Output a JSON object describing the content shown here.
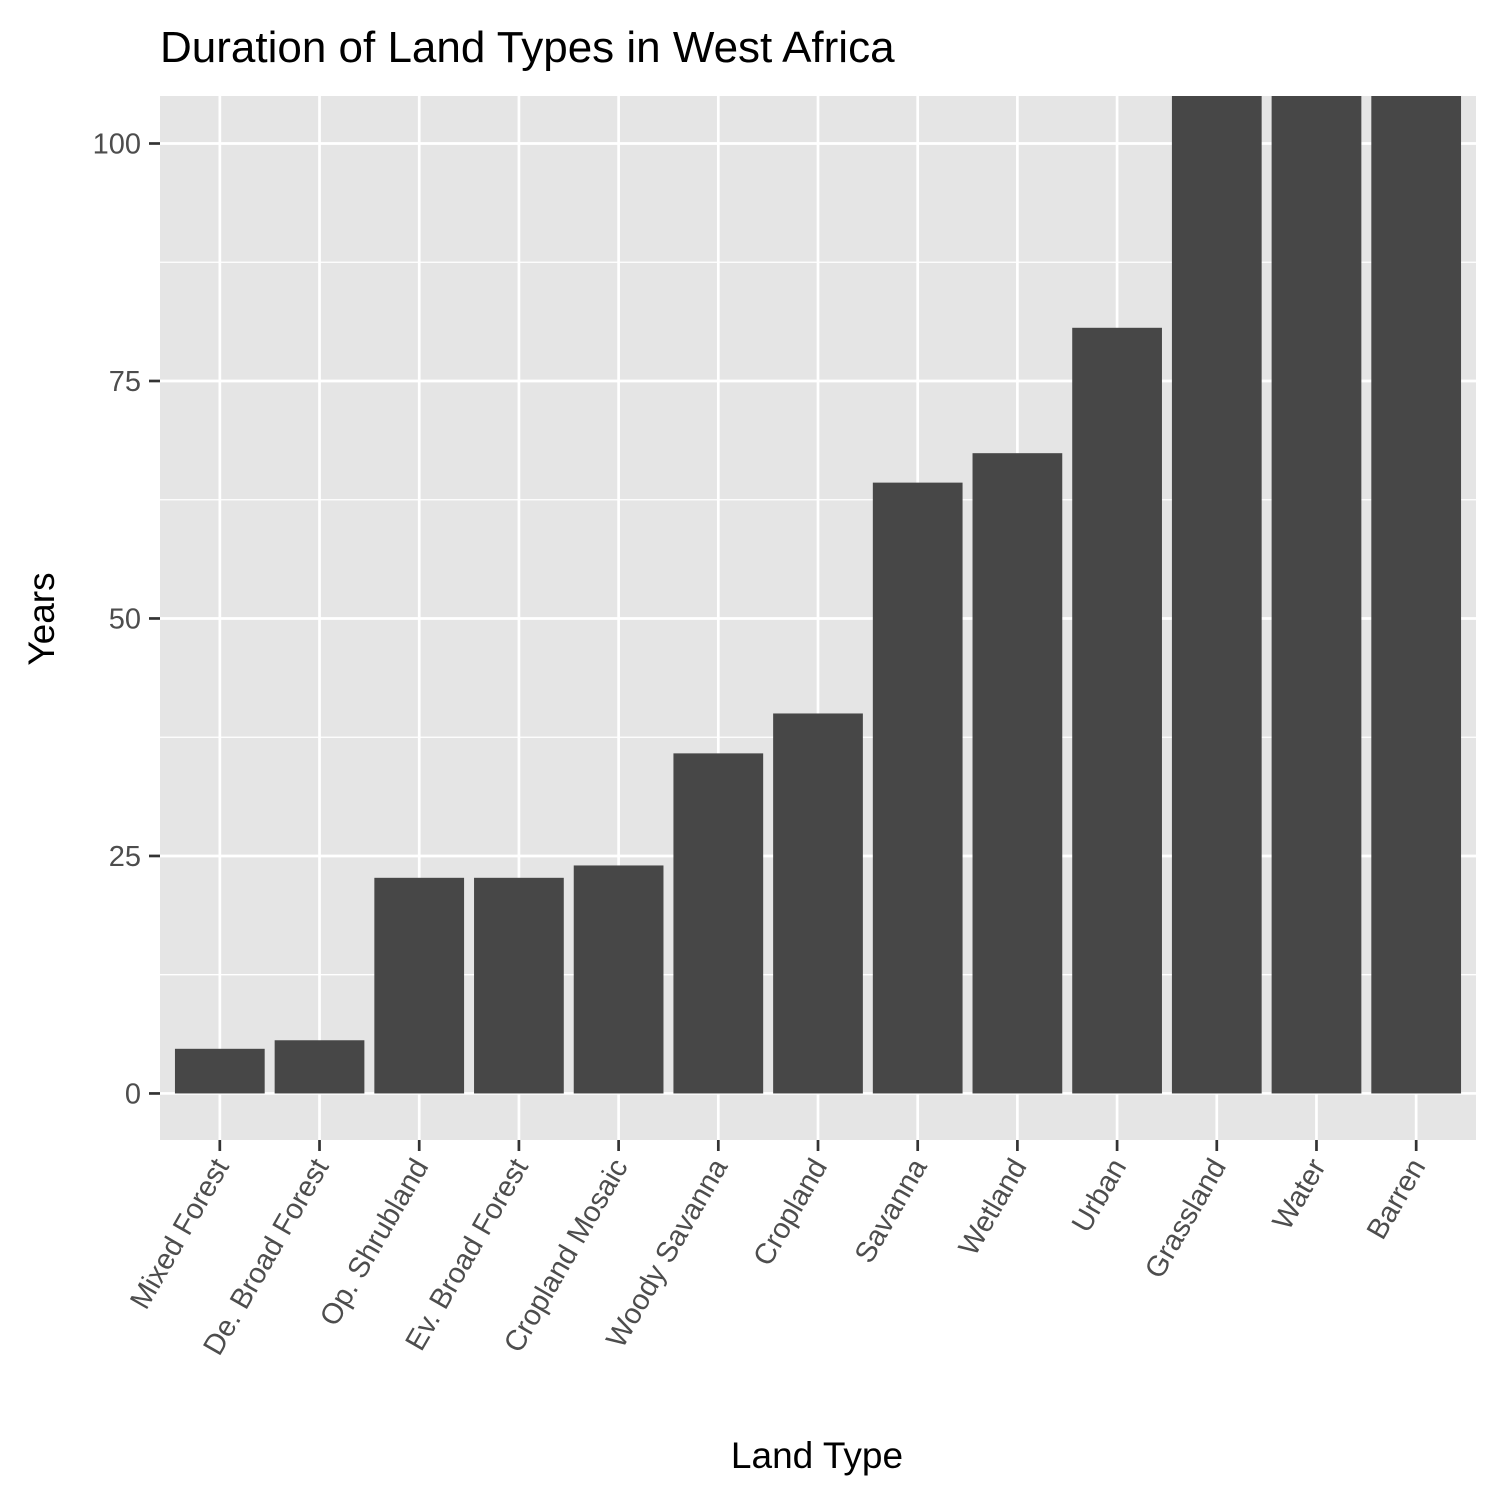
{
  "chart_data": {
    "type": "bar",
    "title": "Duration of Land Types in West Africa",
    "xlabel": "Land Type",
    "ylabel": "Years",
    "categories": [
      "Mixed Forest",
      "De. Broad Forest",
      "Op. Shrubland",
      "Ev. Broad Forest",
      "Cropland Mosaic",
      "Woody Savanna",
      "Cropland",
      "Savanna",
      "Wetland",
      "Urban",
      "Grassland",
      "Water",
      "Barren"
    ],
    "values": [
      4.7,
      5.6,
      22.7,
      22.7,
      24.0,
      35.8,
      40.0,
      64.3,
      67.4,
      80.6,
      105,
      105,
      105
    ],
    "ylim": [
      -4.9,
      105
    ],
    "yticks": [
      0,
      25,
      50,
      75,
      100
    ],
    "ytick_labels": [
      "0",
      "25",
      "50",
      "75",
      "100"
    ],
    "grid": true,
    "panel_color": "#e5e5e5",
    "grid_color": "#ffffff",
    "bar_color": "#474747",
    "tick_label_color": "#4d4d4d"
  }
}
